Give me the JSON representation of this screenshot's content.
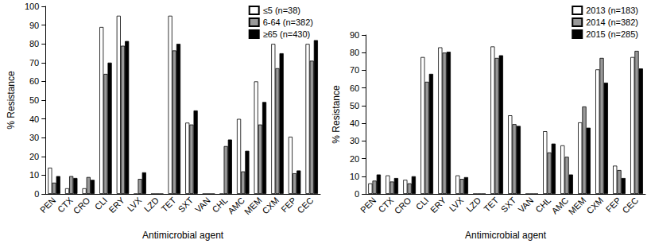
{
  "chart_data": [
    {
      "type": "bar",
      "x_label": "Antimicrobial agent",
      "y_label": "% Resistance",
      "categories": [
        "PEN",
        "CTX",
        "CRO",
        "CLI",
        "ERY",
        "LVX",
        "LZD",
        "TET",
        "SXT",
        "VAN",
        "CHL",
        "AMC",
        "MEM",
        "CXM",
        "FEP",
        "CEC"
      ],
      "series": [
        {
          "name": "≤5 (n=38)",
          "color": "#ffffff",
          "values": [
            14,
            3,
            3,
            89,
            95,
            0,
            0,
            95,
            38,
            0,
            0,
            40,
            60,
            80,
            30.5,
            80
          ]
        },
        {
          "name": "6-64 (n=382)",
          "color": "#999999",
          "values": [
            6,
            9.5,
            9,
            64,
            79,
            8,
            0,
            76.5,
            37,
            0,
            25.5,
            12,
            37,
            67,
            11,
            71
          ]
        },
        {
          "name": "≥65 (n=430)",
          "color": "#000000",
          "values": [
            9.5,
            8.5,
            7.5,
            70,
            81.5,
            11.5,
            0,
            80,
            44.5,
            0,
            29,
            23,
            49,
            75,
            12.5,
            82
          ]
        }
      ],
      "ylim": [
        0,
        100
      ],
      "yticks": [
        0,
        10,
        20,
        30,
        40,
        50,
        60,
        70,
        80,
        90,
        100
      ],
      "grid": false,
      "legend": "top-right"
    },
    {
      "type": "bar",
      "x_label": "Antimicrobial agent",
      "y_label": "% Resistance",
      "categories": [
        "PEN",
        "CTX",
        "CRO",
        "CLI",
        "ERY",
        "LVX",
        "LZD",
        "TET",
        "SXT",
        "VAN",
        "CHL",
        "AMC",
        "MEM",
        "CXM",
        "FEP",
        "CEC"
      ],
      "series": [
        {
          "name": "2013 (n=183)",
          "color": "#ffffff",
          "values": [
            6,
            10.5,
            8,
            77.5,
            83,
            10.5,
            0,
            83.5,
            44.5,
            0,
            35.5,
            27.5,
            40.5,
            70.5,
            16,
            77.5
          ]
        },
        {
          "name": "2014 (n=382)",
          "color": "#999999",
          "values": [
            7.5,
            7,
            6,
            63.5,
            80,
            8.5,
            0,
            77,
            39.5,
            0,
            23.5,
            21,
            49.5,
            77,
            13.5,
            81
          ]
        },
        {
          "name": "2015 (n=285)",
          "color": "#000000",
          "values": [
            11,
            9,
            10,
            68,
            80.5,
            9.5,
            0,
            78.5,
            38.5,
            0,
            28.5,
            11,
            37.5,
            63,
            9,
            71
          ]
        }
      ],
      "ylim": [
        0,
        90
      ],
      "yticks": [
        0,
        10,
        20,
        30,
        40,
        50,
        60,
        70,
        80,
        90
      ],
      "grid": false,
      "legend": "top-right"
    }
  ]
}
